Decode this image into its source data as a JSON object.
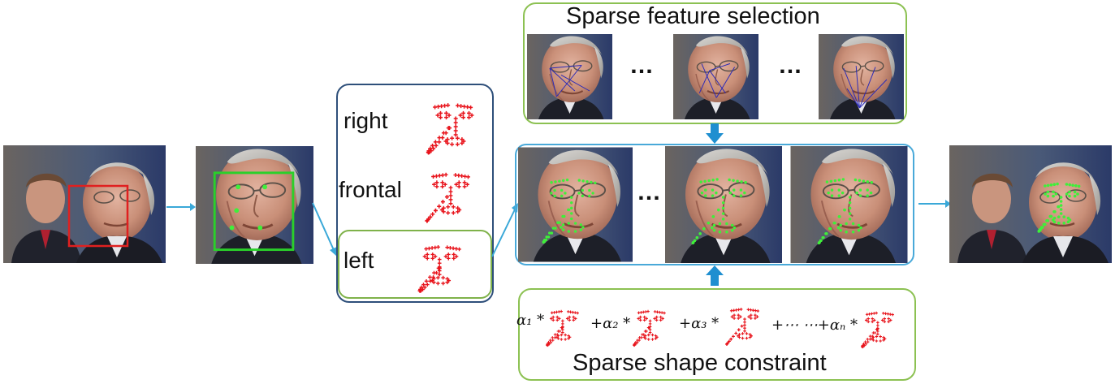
{
  "pose_panel": {
    "labels": [
      "right",
      "frontal",
      "left"
    ]
  },
  "feature_selection": {
    "title": "Sparse feature selection",
    "ellipsis_1": "…",
    "ellipsis_2": "…"
  },
  "alignment_row": {
    "ellipsis": "…"
  },
  "shape_constraint": {
    "title": "Sparse shape constraint",
    "terms": [
      {
        "coef": "α₁ *"
      },
      {
        "coef": "+α₂ *"
      },
      {
        "coef": "+α₃ *"
      },
      {
        "coef": "+⋯ ⋯+αₙ *"
      }
    ]
  },
  "colors": {
    "arrow_light_blue": "#3aa8d8",
    "arrow_block_blue": "#1f8fd0",
    "pose_box_border": "#2e4f7a",
    "left_highlight_border": "#7fb24a",
    "feature_box_border": "#8cc152",
    "align_box_border": "#49a9d9",
    "detect_box_red": "#e02020",
    "detect_box_green": "#2ad02a",
    "landmark_red": "#e8131b",
    "landmark_green": "#3ef03a",
    "selection_lines": "#2a2ab8"
  }
}
